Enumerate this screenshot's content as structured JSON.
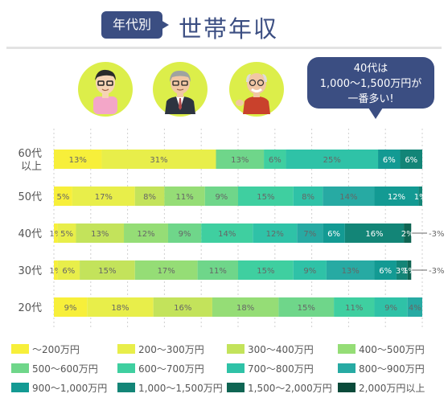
{
  "header": {
    "badge": "年代別",
    "title": "世帯年収"
  },
  "callout": {
    "line1": "40代は",
    "line2": "1,000～1,500万円が",
    "line3": "一番多い!"
  },
  "avatars": [
    "person-20s-icon",
    "person-40s-icon",
    "person-elderly-icon"
  ],
  "colors": [
    "#f7ef3a",
    "#e8ee4a",
    "#c3e35b",
    "#95dd76",
    "#6fd68a",
    "#3fcfa0",
    "#2fc2a7",
    "#27aaa3",
    "#139a93",
    "#138577",
    "#0f6553",
    "#0a4a3a"
  ],
  "chart_data": {
    "type": "bar",
    "stacked": true,
    "orientation": "horizontal",
    "xlim": [
      0,
      100
    ],
    "grid": true,
    "legend_position": "bottom",
    "categories": [
      "60代以上",
      "50代",
      "40代",
      "30代",
      "20代"
    ],
    "category_lines": [
      [
        "60代",
        "以上"
      ],
      [
        "50代"
      ],
      [
        "40代"
      ],
      [
        "30代"
      ],
      [
        "20代"
      ]
    ],
    "series": [
      {
        "name": "～200万円",
        "values": [
          13,
          5,
          1,
          1,
          9
        ]
      },
      {
        "name": "200～300万円",
        "values": [
          31,
          17,
          5,
          6,
          18
        ]
      },
      {
        "name": "300～400万円",
        "values": [
          0,
          8,
          13,
          15,
          16
        ]
      },
      {
        "name": "400～500万円",
        "values": [
          0,
          11,
          12,
          17,
          18
        ]
      },
      {
        "name": "500～600万円",
        "values": [
          13,
          9,
          9,
          11,
          15
        ]
      },
      {
        "name": "600～700万円",
        "values": [
          6,
          15,
          14,
          15,
          11
        ]
      },
      {
        "name": "700～800万円",
        "values": [
          25,
          8,
          12,
          9,
          9
        ]
      },
      {
        "name": "800～900万円",
        "values": [
          0,
          14,
          7,
          13,
          4
        ]
      },
      {
        "name": "900～1,000万円",
        "values": [
          6,
          12,
          6,
          6,
          0
        ]
      },
      {
        "name": "1,000～1,500万円",
        "values": [
          6,
          1,
          16,
          3,
          0
        ]
      },
      {
        "name": "1,500～2,000万円",
        "values": [
          0,
          0,
          2,
          1,
          0
        ]
      },
      {
        "name": "2,000万円以上",
        "values": [
          0,
          0,
          0,
          0,
          0
        ]
      }
    ],
    "data_labels": [
      [
        "13%",
        "31%",
        "",
        "",
        "13%",
        "6%",
        "25%",
        "",
        "6%",
        "6%",
        "",
        ""
      ],
      [
        "5%",
        "17%",
        "8%",
        "11%",
        "9%",
        "15%",
        "8%",
        "14%",
        "12%",
        "1%",
        "",
        ""
      ],
      [
        "1%",
        "5%",
        "13%",
        "12%",
        "9%",
        "14%",
        "12%",
        "7%",
        "6%",
        "16%",
        "2%",
        ""
      ],
      [
        "1%",
        "6%",
        "15%",
        "17%",
        "11%",
        "15%",
        "9%",
        "13%",
        "6%",
        "3%",
        "1%",
        ""
      ],
      [
        "9%",
        "18%",
        "16%",
        "18%",
        "15%",
        "11%",
        "9%",
        "4%",
        "",
        "",
        "",
        ""
      ]
    ],
    "outside_labels": [
      "",
      "",
      "3%",
      "3%",
      ""
    ]
  }
}
